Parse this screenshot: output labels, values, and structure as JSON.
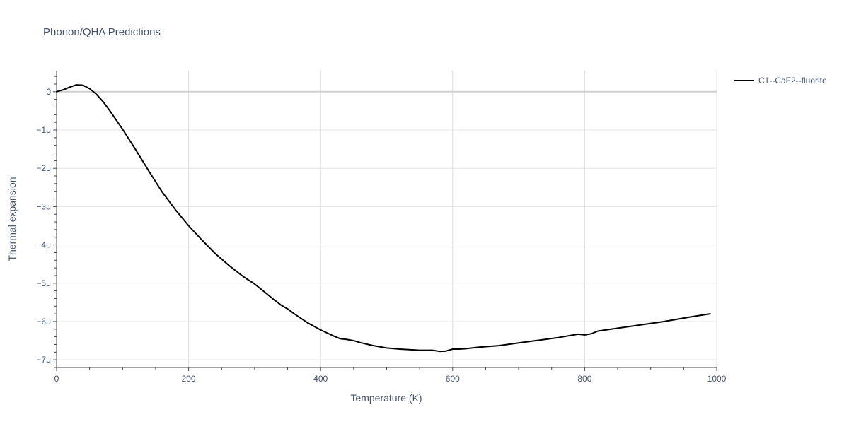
{
  "chart_data": {
    "type": "line",
    "title": "Phonon/QHA Predictions",
    "xlabel": "Temperature (K)",
    "ylabel": "Thermal expansion",
    "xlim": [
      0,
      1000
    ],
    "ylim": [
      -7.2e-06,
      5.5e-07
    ],
    "x_ticks": [
      0,
      200,
      400,
      600,
      800,
      1000
    ],
    "x_tick_labels": [
      "0",
      "200",
      "400",
      "600",
      "800",
      "1000"
    ],
    "y_ticks": [
      0,
      -1e-06,
      -2e-06,
      -3e-06,
      -4e-06,
      -5e-06,
      -6e-06,
      -7e-06
    ],
    "y_tick_labels": [
      "0",
      "−1μ",
      "−2μ",
      "−3μ",
      "−4μ",
      "−5μ",
      "−6μ",
      "−7μ"
    ],
    "grid": true,
    "legend_position": "top-right",
    "series": [
      {
        "name": "C1--CaF2--fluorite",
        "color": "#000000",
        "x": [
          0,
          10,
          20,
          30,
          40,
          50,
          60,
          70,
          80,
          90,
          100,
          110,
          120,
          140,
          160,
          180,
          200,
          220,
          240,
          260,
          280,
          290,
          300,
          310,
          320,
          330,
          340,
          350,
          360,
          380,
          400,
          420,
          430,
          440,
          450,
          460,
          480,
          500,
          520,
          550,
          570,
          580,
          590,
          600,
          610,
          620,
          640,
          670,
          700,
          730,
          760,
          790,
          800,
          810,
          820,
          840,
          880,
          920,
          960,
          990
        ],
        "y": [
          0,
          5e-08,
          1.2e-07,
          1.8e-07,
          1.7e-07,
          8e-08,
          -6e-08,
          -2.5e-07,
          -4.8e-07,
          -7.3e-07,
          -9.8e-07,
          -1.25e-06,
          -1.52e-06,
          -2.08e-06,
          -2.62e-06,
          -3.08e-06,
          -3.5e-06,
          -3.87e-06,
          -4.22e-06,
          -4.52e-06,
          -4.79e-06,
          -4.91e-06,
          -5.02e-06,
          -5.16e-06,
          -5.3e-06,
          -5.44e-06,
          -5.57e-06,
          -5.67e-06,
          -5.8e-06,
          -6.03e-06,
          -6.22e-06,
          -6.38e-06,
          -6.45e-06,
          -6.47e-06,
          -6.5e-06,
          -6.55e-06,
          -6.63e-06,
          -6.69e-06,
          -6.72e-06,
          -6.75e-06,
          -6.75e-06,
          -6.78e-06,
          -6.77e-06,
          -6.72e-06,
          -6.72e-06,
          -6.71e-06,
          -6.67e-06,
          -6.63e-06,
          -6.56e-06,
          -6.49e-06,
          -6.42e-06,
          -6.33e-06,
          -6.35e-06,
          -6.32e-06,
          -6.25e-06,
          -6.2e-06,
          -6.1e-06,
          -6e-06,
          -5.88e-06,
          -5.8e-06
        ]
      }
    ]
  }
}
